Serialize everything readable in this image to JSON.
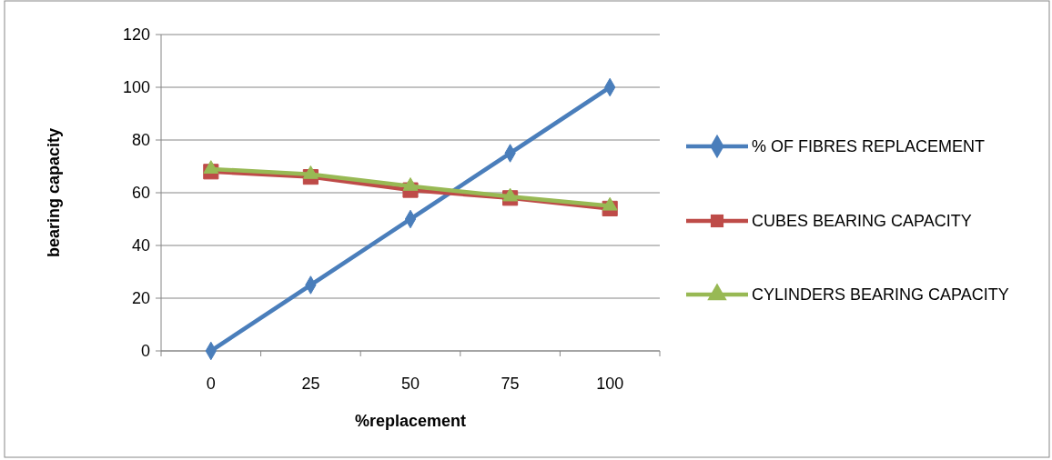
{
  "chart_data": {
    "type": "line",
    "xlabel": "%replacement",
    "ylabel": "bearing capacity",
    "categories": [
      "0",
      "25",
      "50",
      "75",
      "100"
    ],
    "series": [
      {
        "name": "% OF FIBRES  REPLACEMENT",
        "color": "#4a7ebb",
        "marker": "diamond",
        "values": [
          0,
          25,
          50,
          75,
          100
        ]
      },
      {
        "name": "CUBES  BEARING CAPACITY",
        "color": "#be4b48",
        "marker": "square",
        "values": [
          68,
          66,
          61,
          58,
          54
        ]
      },
      {
        "name": "CYLINDERS  BEARING CAPACITY",
        "color": "#98b954",
        "marker": "triangle",
        "values": [
          69,
          67,
          62.5,
          58.5,
          55
        ]
      }
    ],
    "ylim": [
      0,
      120
    ],
    "yticks": [
      0,
      20,
      40,
      60,
      80,
      100,
      120
    ],
    "grid": "y",
    "legend": "right"
  }
}
